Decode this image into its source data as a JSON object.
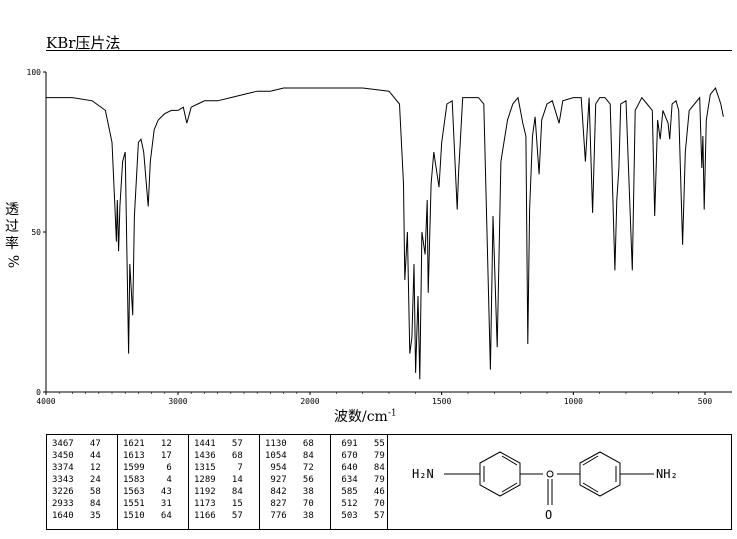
{
  "header": {
    "method": "KBr压片法"
  },
  "axes": {
    "ylabel_chars": [
      "透",
      "过",
      "率",
      "%"
    ],
    "xlabel_main": "波数/cm",
    "xlabel_sup": "-1",
    "y_ticks": [
      "100",
      "50",
      "0"
    ],
    "x_ticks": [
      "4000",
      "3000",
      "2000",
      "1500",
      "1000",
      "500"
    ]
  },
  "chart_data": {
    "type": "line",
    "xlabel": "波数/cm-1",
    "ylabel": "透过率%",
    "xlim": [
      4000,
      500
    ],
    "ylim": [
      0,
      100
    ],
    "x_scale": "ir-split: linear 4000-2000 and 2000-500 with compressed high range",
    "grid": false,
    "series": [
      {
        "points": [
          [
            4000,
            92
          ],
          [
            3800,
            92
          ],
          [
            3650,
            91
          ],
          [
            3550,
            88
          ],
          [
            3500,
            78
          ],
          [
            3480,
            60
          ],
          [
            3467,
            47
          ],
          [
            3460,
            60
          ],
          [
            3450,
            44
          ],
          [
            3440,
            58
          ],
          [
            3420,
            72
          ],
          [
            3400,
            75
          ],
          [
            3374,
            12
          ],
          [
            3365,
            40
          ],
          [
            3343,
            24
          ],
          [
            3330,
            55
          ],
          [
            3300,
            78
          ],
          [
            3280,
            79
          ],
          [
            3260,
            75
          ],
          [
            3226,
            58
          ],
          [
            3210,
            72
          ],
          [
            3180,
            82
          ],
          [
            3150,
            85
          ],
          [
            3100,
            87
          ],
          [
            3050,
            88
          ],
          [
            3000,
            88
          ],
          [
            2960,
            89
          ],
          [
            2933,
            84
          ],
          [
            2900,
            89
          ],
          [
            2850,
            90
          ],
          [
            2800,
            91
          ],
          [
            2700,
            91
          ],
          [
            2600,
            92
          ],
          [
            2500,
            93
          ],
          [
            2400,
            94
          ],
          [
            2300,
            94
          ],
          [
            2200,
            95
          ],
          [
            2100,
            95
          ],
          [
            2000,
            95
          ],
          [
            1900,
            95
          ],
          [
            1800,
            95
          ],
          [
            1700,
            94
          ],
          [
            1660,
            90
          ],
          [
            1645,
            65
          ],
          [
            1640,
            35
          ],
          [
            1630,
            50
          ],
          [
            1621,
            12
          ],
          [
            1613,
            17
          ],
          [
            1605,
            40
          ],
          [
            1599,
            6
          ],
          [
            1590,
            30
          ],
          [
            1583,
            4
          ],
          [
            1575,
            50
          ],
          [
            1563,
            43
          ],
          [
            1555,
            60
          ],
          [
            1551,
            31
          ],
          [
            1540,
            65
          ],
          [
            1530,
            75
          ],
          [
            1510,
            64
          ],
          [
            1500,
            78
          ],
          [
            1480,
            90
          ],
          [
            1460,
            91
          ],
          [
            1441,
            57
          ],
          [
            1436,
            68
          ],
          [
            1420,
            92
          ],
          [
            1400,
            92
          ],
          [
            1360,
            92
          ],
          [
            1340,
            90
          ],
          [
            1315,
            7
          ],
          [
            1305,
            55
          ],
          [
            1289,
            14
          ],
          [
            1275,
            72
          ],
          [
            1250,
            85
          ],
          [
            1230,
            90
          ],
          [
            1210,
            92
          ],
          [
            1192,
            84
          ],
          [
            1180,
            80
          ],
          [
            1173,
            15
          ],
          [
            1166,
            57
          ],
          [
            1155,
            80
          ],
          [
            1145,
            86
          ],
          [
            1130,
            68
          ],
          [
            1120,
            85
          ],
          [
            1100,
            90
          ],
          [
            1080,
            91
          ],
          [
            1054,
            84
          ],
          [
            1040,
            91
          ],
          [
            1000,
            92
          ],
          [
            970,
            92
          ],
          [
            954,
            72
          ],
          [
            940,
            92
          ],
          [
            927,
            56
          ],
          [
            915,
            90
          ],
          [
            900,
            92
          ],
          [
            880,
            92
          ],
          [
            860,
            90
          ],
          [
            842,
            38
          ],
          [
            835,
            60
          ],
          [
            827,
            70
          ],
          [
            820,
            90
          ],
          [
            800,
            91
          ],
          [
            776,
            38
          ],
          [
            765,
            88
          ],
          [
            740,
            92
          ],
          [
            720,
            90
          ],
          [
            700,
            88
          ],
          [
            691,
            55
          ],
          [
            680,
            85
          ],
          [
            670,
            79
          ],
          [
            660,
            88
          ],
          [
            640,
            84
          ],
          [
            634,
            79
          ],
          [
            625,
            90
          ],
          [
            610,
            91
          ],
          [
            600,
            88
          ],
          [
            585,
            46
          ],
          [
            575,
            75
          ],
          [
            560,
            88
          ],
          [
            540,
            90
          ],
          [
            520,
            92
          ],
          [
            512,
            70
          ],
          [
            508,
            80
          ],
          [
            503,
            57
          ],
          [
            495,
            85
          ],
          [
            480,
            93
          ],
          [
            460,
            95
          ],
          [
            440,
            90
          ],
          [
            430,
            86
          ]
        ]
      }
    ],
    "peak_table": [
      [
        [
          3467,
          47
        ],
        [
          3450,
          44
        ],
        [
          3374,
          12
        ],
        [
          3343,
          24
        ],
        [
          3226,
          58
        ],
        [
          2933,
          84
        ],
        [
          1640,
          35
        ]
      ],
      [
        [
          1621,
          12
        ],
        [
          1613,
          17
        ],
        [
          1599,
          6
        ],
        [
          1583,
          4
        ],
        [
          1563,
          43
        ],
        [
          1551,
          31
        ],
        [
          1510,
          64
        ]
      ],
      [
        [
          1441,
          57
        ],
        [
          1436,
          68
        ],
        [
          1315,
          7
        ],
        [
          1289,
          14
        ],
        [
          1192,
          84
        ],
        [
          1173,
          15
        ],
        [
          1166,
          57
        ]
      ],
      [
        [
          1130,
          68
        ],
        [
          1054,
          84
        ],
        [
          954,
          72
        ],
        [
          927,
          56
        ],
        [
          842,
          38
        ],
        [
          827,
          70
        ],
        [
          776,
          38
        ]
      ],
      [
        [
          691,
          55
        ],
        [
          670,
          79
        ],
        [
          640,
          84
        ],
        [
          634,
          79
        ],
        [
          585,
          46
        ],
        [
          512,
          70
        ],
        [
          503,
          57
        ]
      ]
    ]
  },
  "structure": {
    "left_group": "H₂N",
    "right_group": "NH₂",
    "carbonyl": "O"
  }
}
